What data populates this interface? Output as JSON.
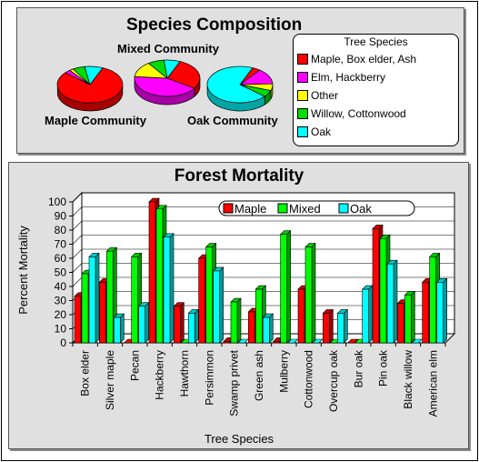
{
  "composition": {
    "title": "Species Composition",
    "legend_title": "Tree Species",
    "species": [
      {
        "name": "Maple, Box elder, Ash",
        "color": "#ff0000"
      },
      {
        "name": "Elm, Hackberry",
        "color": "#ff00ff"
      },
      {
        "name": "Other",
        "color": "#ffff00"
      },
      {
        "name": "Willow, Cottonwood",
        "color": "#00dd00"
      },
      {
        "name": "Oak",
        "color": "#00ffff"
      }
    ],
    "pies": [
      {
        "label": "Maple Community",
        "shares": [
          80,
          3,
          2,
          6,
          9
        ]
      },
      {
        "label": "Mixed Community",
        "shares": [
          28,
          42,
          14,
          8,
          8
        ]
      },
      {
        "label": "Oak Community",
        "shares": [
          4,
          14,
          6,
          6,
          70
        ]
      }
    ]
  },
  "chart_data": {
    "type": "bar",
    "title": "Forest Mortality",
    "xlabel": "Tree Species",
    "ylabel": "Percent Mortality",
    "ylim": [
      0,
      100
    ],
    "yticks": [
      0,
      10,
      20,
      30,
      40,
      50,
      60,
      70,
      80,
      90,
      100
    ],
    "grid": true,
    "legend_position": "top-right",
    "categories": [
      "Box elder",
      "Silver maple",
      "Pecan",
      "Hackberry",
      "Hawthorn",
      "Persimmon",
      "Swamp privet",
      "Green ash",
      "Mulberry",
      "Cottonwood",
      "Overcup oak",
      "Bur oak",
      "Pin oak",
      "Black willow",
      "American elm"
    ],
    "series": [
      {
        "name": "Maple",
        "color": "#ff0000",
        "values": [
          33,
          43,
          0,
          100,
          26,
          60,
          1,
          22,
          1,
          38,
          21,
          0,
          81,
          28,
          43
        ]
      },
      {
        "name": "Mixed",
        "color": "#00ff00",
        "values": [
          49,
          65,
          61,
          95,
          0,
          68,
          29,
          38,
          77,
          68,
          0,
          0,
          74,
          34,
          61
        ]
      },
      {
        "name": "Oak",
        "color": "#00ffff",
        "values": [
          61,
          18,
          26,
          75,
          21,
          51,
          0,
          18,
          0,
          0,
          21,
          38,
          56,
          0,
          43
        ]
      }
    ]
  }
}
